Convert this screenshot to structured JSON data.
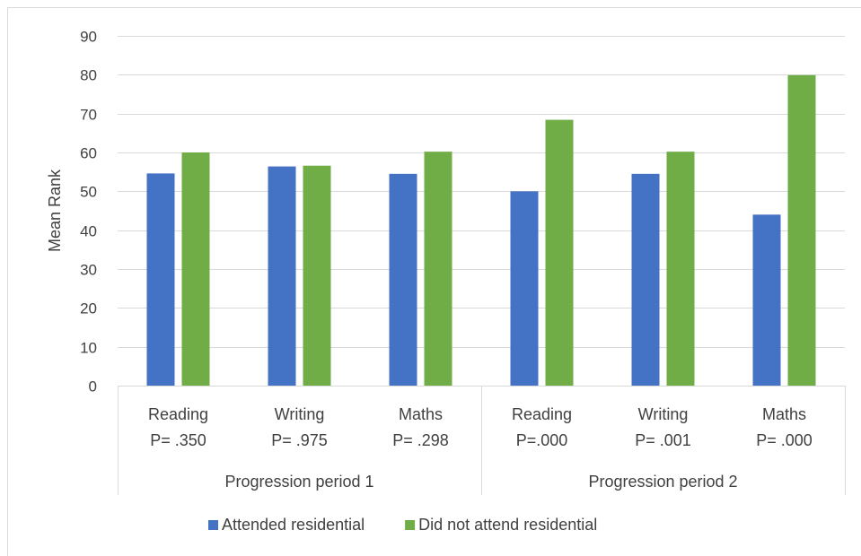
{
  "chart_data": {
    "type": "bar",
    "title": "",
    "ylabel": "Mean Rank",
    "xlabel": "",
    "ylim": [
      0,
      90
    ],
    "ytick_step": 10,
    "grid": true,
    "legend_position": "bottom",
    "groups": [
      {
        "label": "Progression period 1",
        "categories": [
          {
            "name": "Reading",
            "pvalue": "P= .350"
          },
          {
            "name": "Writing",
            "pvalue": "P= .975"
          },
          {
            "name": "Maths",
            "pvalue": "P= .298"
          }
        ]
      },
      {
        "label": "Progression period 2",
        "categories": [
          {
            "name": "Reading",
            "pvalue": "P=.000"
          },
          {
            "name": "Writing",
            "pvalue": "P= .001"
          },
          {
            "name": "Maths",
            "pvalue": "P= .000"
          }
        ]
      }
    ],
    "series": [
      {
        "name": "Attended residential",
        "color": "#4472c4",
        "values": [
          54.6,
          56.4,
          54.5,
          50.0,
          54.5,
          44.0
        ]
      },
      {
        "name": "Did not attend residential",
        "color": "#70ad47",
        "values": [
          60.0,
          56.6,
          60.2,
          68.4,
          60.2,
          79.9
        ]
      }
    ]
  }
}
